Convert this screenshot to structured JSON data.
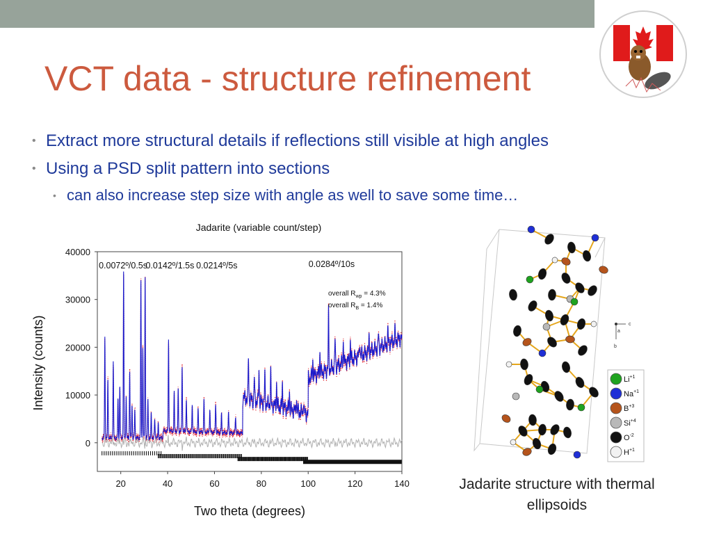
{
  "slide": {
    "title": "VCT data - structure refinement",
    "bullets": [
      {
        "level": 1,
        "text": "Extract more structural details if reflections still visible at high angles"
      },
      {
        "level": 1,
        "text": "Using a PSD split pattern into sections"
      },
      {
        "level": 2,
        "text": "can also increase step size with angle as well to save some time…"
      }
    ],
    "structure_caption": "Jadarite structure with thermal ellipsoids",
    "colors": {
      "title": "#cc5a3e",
      "bullet_text": "#1f3a9a",
      "top_bar": "#97a39a"
    }
  },
  "chart_data": {
    "type": "line",
    "title": "Jadarite (variable count/step)",
    "xlabel": "Two theta (degrees)",
    "ylabel": "Intensity (counts)",
    "xlim": [
      10,
      140
    ],
    "ylim": [
      -6000,
      40000
    ],
    "x_ticks": [
      "20",
      "40",
      "60",
      "80",
      "100",
      "120",
      "140"
    ],
    "y_ticks": [
      "0",
      "10000",
      "20000",
      "30000",
      "40000"
    ],
    "section_labels": [
      {
        "text": "0.0072º/0.5s",
        "x": 21
      },
      {
        "text": "0.0142º/1.5s",
        "x": 41
      },
      {
        "text": "0.0214º/5s",
        "x": 61
      },
      {
        "text": "0.0284º/10s",
        "x": 110
      }
    ],
    "fit_stats": [
      {
        "prefix": "overall R",
        "sub": "wp",
        "value": " = 4.3%"
      },
      {
        "prefix": "overall R",
        "sub": "B",
        "value": " = 1.4%"
      }
    ],
    "series": [
      {
        "name": "observed",
        "color": "#e0202a"
      },
      {
        "name": "calculated",
        "color": "#1a1acc"
      },
      {
        "name": "difference",
        "color": "#b0b0b0"
      }
    ],
    "sections": [
      {
        "range": [
          12,
          38
        ],
        "base_start": 1000,
        "base_end": 1000
      },
      {
        "range": [
          38,
          72
        ],
        "base_start": 2500,
        "base_end": 2000
      },
      {
        "range": [
          72,
          100
        ],
        "base_start": 9500,
        "base_end": 6000
      },
      {
        "range": [
          100,
          140
        ],
        "base_start": 13500,
        "base_end": 22000
      }
    ],
    "peaks": [
      [
        13.2,
        21000
      ],
      [
        14.5,
        12000
      ],
      [
        16.8,
        16000
      ],
      [
        18.8,
        8000
      ],
      [
        19.6,
        11000
      ],
      [
        21.2,
        35000
      ],
      [
        22.3,
        9000
      ],
      [
        23.8,
        14000
      ],
      [
        24.8,
        7000
      ],
      [
        26.0,
        6000
      ],
      [
        28.6,
        33000
      ],
      [
        29.4,
        19000
      ],
      [
        30.4,
        34000
      ],
      [
        31.6,
        8000
      ],
      [
        33.0,
        5000
      ],
      [
        34.5,
        4000
      ],
      [
        36.0,
        3000
      ],
      [
        40.4,
        19000
      ],
      [
        42.8,
        8000
      ],
      [
        44.5,
        9000
      ],
      [
        46.2,
        14000
      ],
      [
        48.0,
        7000
      ],
      [
        50.5,
        6000
      ],
      [
        53.0,
        5000
      ],
      [
        55.5,
        7000
      ],
      [
        58.0,
        5000
      ],
      [
        60.5,
        6000
      ],
      [
        63.0,
        4000
      ],
      [
        66.0,
        4500
      ],
      [
        69.0,
        3500
      ],
      [
        74.5,
        9000
      ],
      [
        77.0,
        5000
      ],
      [
        79.0,
        7000
      ],
      [
        81.5,
        6000
      ],
      [
        84.0,
        7000
      ],
      [
        86.5,
        5000
      ],
      [
        89.0,
        5000
      ],
      [
        92.0,
        4000
      ],
      [
        95.0,
        3000
      ],
      [
        98.0,
        2500
      ],
      [
        102.0,
        3500
      ],
      [
        105.0,
        4500
      ],
      [
        108.7,
        12000
      ],
      [
        111.5,
        6000
      ],
      [
        115.0,
        5000
      ],
      [
        118.0,
        4000
      ],
      [
        122.0,
        3500
      ],
      [
        126.0,
        3000
      ],
      [
        130.0,
        3000
      ],
      [
        134.0,
        2500
      ],
      [
        137.0,
        2000
      ]
    ],
    "tick_rows": [
      {
        "range": [
          12,
          38
        ],
        "y": -2200,
        "spacing": 0.9
      },
      {
        "range": [
          36,
          72
        ],
        "y": -2800,
        "spacing": 0.45
      },
      {
        "range": [
          70,
          100
        ],
        "y": -3400,
        "spacing": 0.35
      },
      {
        "range": [
          98,
          140
        ],
        "y": -4000,
        "spacing": 0.3
      }
    ]
  },
  "structure_legend": [
    {
      "label": "Li",
      "charge": "+1",
      "color": "#1fa31f"
    },
    {
      "label": "Na",
      "charge": "+1",
      "color": "#1f2fd6"
    },
    {
      "label": "B",
      "charge": "+3",
      "color": "#b5541c"
    },
    {
      "label": "Si",
      "charge": "+4",
      "color": "#b8b8b8"
    },
    {
      "label": "O",
      "charge": "-2",
      "color": "#111111"
    },
    {
      "label": "H",
      "charge": "+1",
      "color": "#f2f2f2"
    }
  ],
  "axis_labels": {
    "a": "a",
    "b": "b",
    "c": "c"
  }
}
